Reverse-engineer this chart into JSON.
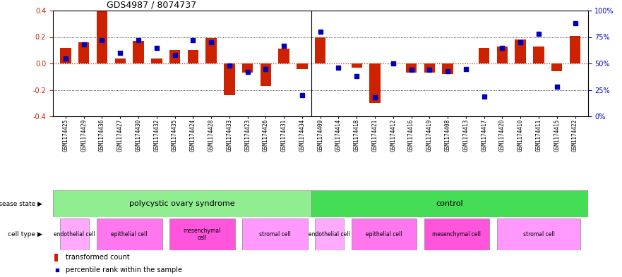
{
  "title": "GDS4987 / 8074737",
  "samples": [
    "GSM1174425",
    "GSM1174429",
    "GSM1174436",
    "GSM1174427",
    "GSM1174430",
    "GSM1174432",
    "GSM1174435",
    "GSM1174424",
    "GSM1174428",
    "GSM1174433",
    "GSM1174423",
    "GSM1174426",
    "GSM1174431",
    "GSM1174434",
    "GSM1174409",
    "GSM1174414",
    "GSM1174418",
    "GSM1174421",
    "GSM1174412",
    "GSM1174416",
    "GSM1174419",
    "GSM1174408",
    "GSM1174413",
    "GSM1174417",
    "GSM1174420",
    "GSM1174410",
    "GSM1174411",
    "GSM1174415",
    "GSM1174422"
  ],
  "red_bars": [
    0.12,
    0.16,
    0.4,
    0.04,
    0.17,
    0.04,
    0.1,
    0.1,
    0.19,
    -0.24,
    -0.07,
    -0.17,
    0.11,
    -0.04,
    0.2,
    0.0,
    -0.03,
    -0.3,
    0.0,
    -0.07,
    -0.07,
    -0.08,
    0.0,
    0.12,
    0.13,
    0.18,
    0.13,
    -0.06,
    0.21
  ],
  "blue_pct": [
    55,
    68,
    72,
    60,
    72,
    65,
    58,
    72,
    70,
    48,
    42,
    45,
    67,
    20,
    80,
    46,
    38,
    18,
    50,
    44,
    44,
    43,
    45,
    19,
    65,
    70,
    78,
    28,
    88
  ],
  "ylim": [
    -0.4,
    0.4
  ],
  "yticks_left": [
    -0.4,
    -0.2,
    0.0,
    0.2,
    0.4
  ],
  "yticks_right_pct": [
    0,
    25,
    50,
    75,
    100
  ],
  "bar_color": "#CC2200",
  "dot_color": "#0000BB",
  "pcos_color": "#90EE90",
  "control_color": "#44DD55",
  "cell_colors": [
    "#FFAAFF",
    "#FF77EE",
    "#FF55DD",
    "#FF99FF"
  ],
  "pcos_cell_types": [
    {
      "label": "endothelial cell",
      "start": 0,
      "end": 1
    },
    {
      "label": "epithelial cell",
      "start": 2,
      "end": 5
    },
    {
      "label": "mesenchymal\ncell",
      "start": 6,
      "end": 9
    },
    {
      "label": "stromal cell",
      "start": 10,
      "end": 13
    }
  ],
  "ctrl_cell_types": [
    {
      "label": "endothelial cell",
      "start": 14,
      "end": 15
    },
    {
      "label": "epithelial cell",
      "start": 16,
      "end": 19
    },
    {
      "label": "mesenchymal cell",
      "start": 20,
      "end": 23
    },
    {
      "label": "stromal cell",
      "start": 24,
      "end": 28
    }
  ]
}
